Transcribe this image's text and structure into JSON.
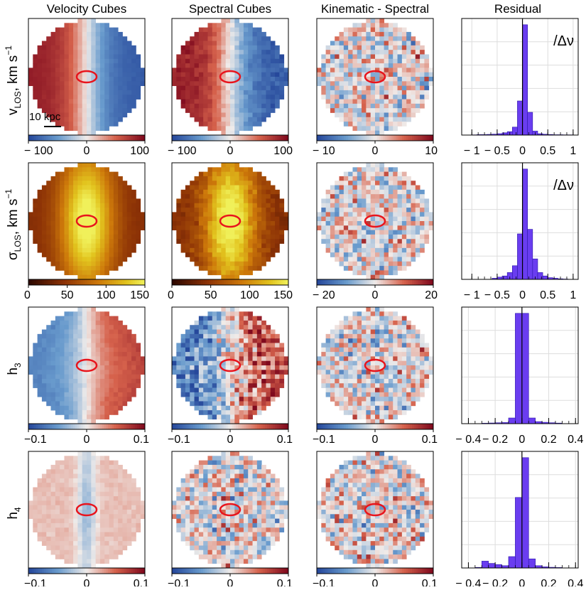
{
  "column_titles": [
    "Velocity Cubes",
    "Spectral Cubes",
    "Kinematic - Spectral",
    "Residual"
  ],
  "row_labels": [
    {
      "main": "v",
      "sub": "LOS",
      "unit": ", km s",
      "sup": "−1"
    },
    {
      "main": "σ",
      "sub": "LOS",
      "unit": ", km s",
      "sup": "−1"
    },
    {
      "main": "h",
      "sub": "3",
      "unit": "",
      "sup": ""
    },
    {
      "main": "h",
      "sub": "4",
      "unit": "",
      "sup": ""
    }
  ],
  "scale_bar_label": "10 kpc",
  "hist_annotation": "/Δν",
  "colors": {
    "ellipse": "#e8141c",
    "hist_bar": "#6a3df0",
    "grid": "#dddddd"
  },
  "colorbars": [
    [
      {
        "cmap": "diverging",
        "ticks": [
          "− 100",
          "0",
          "100"
        ]
      },
      {
        "cmap": "diverging",
        "ticks": [
          "− 100",
          "0",
          "100"
        ]
      },
      {
        "cmap": "diverging",
        "ticks": [
          "− 10",
          "0",
          "10"
        ]
      }
    ],
    [
      {
        "cmap": "heat",
        "ticks": [
          "0",
          "50",
          "100",
          "150"
        ]
      },
      {
        "cmap": "heat",
        "ticks": [
          "0",
          "50",
          "100",
          "150"
        ]
      },
      {
        "cmap": "diverging",
        "ticks": [
          "− 20",
          "0",
          "20"
        ]
      }
    ],
    [
      {
        "cmap": "diverging",
        "ticks": [
          "−0.1",
          "0",
          "0.1"
        ]
      },
      {
        "cmap": "diverging",
        "ticks": [
          "−0.1",
          "0",
          "0.1"
        ]
      },
      {
        "cmap": "diverging",
        "ticks": [
          "−0.1",
          "0",
          "0.1"
        ]
      }
    ],
    [
      {
        "cmap": "diverging",
        "ticks": [
          "−0.1",
          "0",
          "0.1"
        ]
      },
      {
        "cmap": "diverging",
        "ticks": [
          "−0.1",
          "0",
          "0.1"
        ]
      },
      {
        "cmap": "diverging",
        "ticks": [
          "−0.1",
          "0",
          "0.1"
        ]
      }
    ]
  ],
  "chart_data": [
    {
      "type": "bar",
      "title": "Residual v_LOS /Δν",
      "xlim": [
        -1.2,
        1.1
      ],
      "ylim": [
        0,
        1
      ],
      "x_ticks": [
        -1,
        -0.5,
        0,
        0.5,
        1
      ],
      "x_tick_labels": [
        "− 1",
        "− 0.5",
        "0",
        "0.5",
        "1"
      ],
      "bin_edges": [
        -1.0,
        -0.9,
        -0.8,
        -0.7,
        -0.6,
        -0.5,
        -0.4,
        -0.3,
        -0.2,
        -0.1,
        0.0,
        0.1,
        0.2,
        0.3,
        0.4,
        0.5,
        0.6,
        0.7,
        0.8,
        0.9,
        1.0
      ],
      "values": [
        0.002,
        0.004,
        0.004,
        0.006,
        0.008,
        0.012,
        0.02,
        0.03,
        0.07,
        0.3,
        0.97,
        0.2,
        0.035,
        0.012,
        0.007,
        0.005,
        0.003,
        0.003,
        0.002,
        0.002
      ]
    },
    {
      "type": "bar",
      "title": "Residual σ_LOS /Δν",
      "xlim": [
        -1.2,
        1.1
      ],
      "ylim": [
        0,
        1
      ],
      "x_ticks": [
        -1,
        -0.5,
        0,
        0.5,
        1
      ],
      "x_tick_labels": [
        "− 1",
        "− 0.5",
        "0",
        "0.5",
        "1"
      ],
      "bin_edges": [
        -0.6,
        -0.5,
        -0.4,
        -0.3,
        -0.2,
        -0.1,
        0.0,
        0.1,
        0.2,
        0.3,
        0.4,
        0.5,
        0.6,
        0.7,
        0.8,
        0.9
      ],
      "values": [
        0.01,
        0.02,
        0.03,
        0.06,
        0.12,
        0.4,
        0.97,
        0.44,
        0.18,
        0.06,
        0.03,
        0.015,
        0.01,
        0.005,
        0.003
      ]
    },
    {
      "type": "bar",
      "title": "Residual h3",
      "xlim": [
        -0.45,
        0.42
      ],
      "ylim": [
        0,
        1
      ],
      "x_ticks": [
        -0.4,
        -0.2,
        0,
        0.2,
        0.4
      ],
      "x_tick_labels": [
        "− 0.4",
        "− 0.2",
        "0",
        "0.2",
        "0.4"
      ],
      "bin_edges": [
        -0.3,
        -0.25,
        -0.2,
        -0.15,
        -0.1,
        -0.05,
        0.0,
        0.05,
        0.1,
        0.15,
        0.2,
        0.25,
        0.3
      ],
      "values": [
        0.004,
        0.006,
        0.008,
        0.01,
        0.05,
        0.97,
        0.97,
        0.05,
        0.018,
        0.012,
        0.008,
        0.005
      ]
    },
    {
      "type": "bar",
      "title": "Residual h4",
      "xlim": [
        -0.45,
        0.42
      ],
      "ylim": [
        0,
        1
      ],
      "x_ticks": [
        -0.4,
        -0.2,
        0,
        0.2,
        0.4
      ],
      "x_tick_labels": [
        "− 0.4",
        "− 0.2",
        "0",
        "0.2",
        "0.4"
      ],
      "bin_edges": [
        -0.35,
        -0.3,
        -0.25,
        -0.2,
        -0.15,
        -0.1,
        -0.05,
        0.0,
        0.05,
        0.1,
        0.15,
        0.2,
        0.25,
        0.3
      ],
      "values": [
        0.005,
        0.06,
        0.04,
        0.03,
        0.02,
        0.1,
        0.62,
        0.97,
        0.08,
        0.02,
        0.01,
        0.006,
        0.004
      ]
    }
  ]
}
